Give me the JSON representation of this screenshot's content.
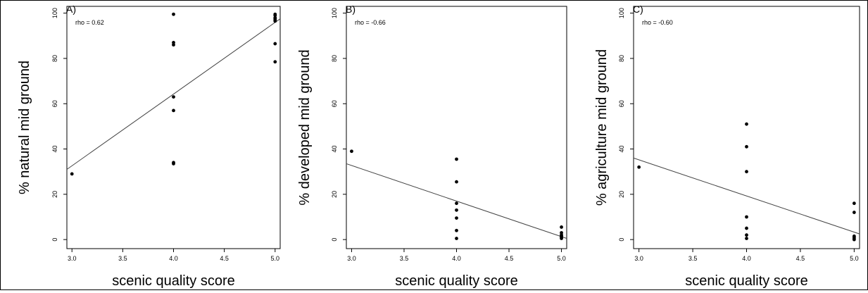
{
  "chart_data": [
    {
      "type": "scatter",
      "panel_label": "A)",
      "annotation": "rho = 0.62",
      "xlabel": "scenic quality score",
      "ylabel": "% natural mid ground",
      "xlim": [
        2.95,
        5.05
      ],
      "ylim": [
        -4,
        103
      ],
      "xticks": [
        "3.0",
        "3.5",
        "4.0",
        "4.5",
        "5.0"
      ],
      "yticks": [
        "0",
        "20",
        "40",
        "60",
        "80",
        "100"
      ],
      "points": [
        {
          "x": 3.0,
          "y": 29
        },
        {
          "x": 4.0,
          "y": 99.5
        },
        {
          "x": 4.0,
          "y": 87
        },
        {
          "x": 4.0,
          "y": 86
        },
        {
          "x": 4.0,
          "y": 63
        },
        {
          "x": 4.0,
          "y": 57
        },
        {
          "x": 4.0,
          "y": 34
        },
        {
          "x": 4.0,
          "y": 33.5
        },
        {
          "x": 5.0,
          "y": 99.5
        },
        {
          "x": 5.0,
          "y": 99
        },
        {
          "x": 5.0,
          "y": 98
        },
        {
          "x": 5.0,
          "y": 97.5
        },
        {
          "x": 5.0,
          "y": 97
        },
        {
          "x": 5.0,
          "y": 96.5
        },
        {
          "x": 5.0,
          "y": 86.5
        },
        {
          "x": 5.0,
          "y": 78.5
        }
      ],
      "fit_line": {
        "x": [
          2.95,
          5.05
        ],
        "y": [
          31,
          97.5
        ]
      },
      "grid": false,
      "legend": "none"
    },
    {
      "type": "scatter",
      "panel_label": "B)",
      "annotation": "rho = -0.66",
      "xlabel": "scenic quality score",
      "ylabel": "% developed mid ground",
      "xlim": [
        2.95,
        5.05
      ],
      "ylim": [
        -4,
        103
      ],
      "xticks": [
        "3.0",
        "3.5",
        "4.0",
        "4.5",
        "5.0"
      ],
      "yticks": [
        "0",
        "20",
        "40",
        "60",
        "80",
        "100"
      ],
      "points": [
        {
          "x": 3.0,
          "y": 39
        },
        {
          "x": 4.0,
          "y": 35.5
        },
        {
          "x": 4.0,
          "y": 25.5
        },
        {
          "x": 4.0,
          "y": 16
        },
        {
          "x": 4.0,
          "y": 13
        },
        {
          "x": 4.0,
          "y": 9.5
        },
        {
          "x": 4.0,
          "y": 4
        },
        {
          "x": 4.0,
          "y": 0.5
        },
        {
          "x": 5.0,
          "y": 5.5
        },
        {
          "x": 5.0,
          "y": 3
        },
        {
          "x": 5.0,
          "y": 2
        },
        {
          "x": 5.0,
          "y": 1.5
        },
        {
          "x": 5.0,
          "y": 1
        },
        {
          "x": 5.0,
          "y": 0.5
        }
      ],
      "fit_line": {
        "x": [
          2.95,
          5.05
        ],
        "y": [
          33.5,
          0.5
        ]
      },
      "grid": false,
      "legend": "none"
    },
    {
      "type": "scatter",
      "panel_label": "C)",
      "annotation": "rho = -0.60",
      "xlabel": "scenic quality score",
      "ylabel": "% agriculture mid ground",
      "xlim": [
        2.95,
        5.05
      ],
      "ylim": [
        -4,
        103
      ],
      "xticks": [
        "3.0",
        "3.5",
        "4.0",
        "4.5",
        "5.0"
      ],
      "yticks": [
        "0",
        "20",
        "40",
        "60",
        "80",
        "100"
      ],
      "points": [
        {
          "x": 3.0,
          "y": 32
        },
        {
          "x": 4.0,
          "y": 51
        },
        {
          "x": 4.0,
          "y": 41
        },
        {
          "x": 4.0,
          "y": 30
        },
        {
          "x": 4.0,
          "y": 10
        },
        {
          "x": 4.0,
          "y": 5
        },
        {
          "x": 4.0,
          "y": 2
        },
        {
          "x": 4.0,
          "y": 0.5
        },
        {
          "x": 5.0,
          "y": 16
        },
        {
          "x": 5.0,
          "y": 12
        },
        {
          "x": 5.0,
          "y": 1.5
        },
        {
          "x": 5.0,
          "y": 1
        },
        {
          "x": 5.0,
          "y": 0.5
        },
        {
          "x": 5.0,
          "y": 0
        }
      ],
      "fit_line": {
        "x": [
          2.95,
          5.05
        ],
        "y": [
          36,
          2.5
        ]
      },
      "grid": false,
      "legend": "none"
    }
  ]
}
